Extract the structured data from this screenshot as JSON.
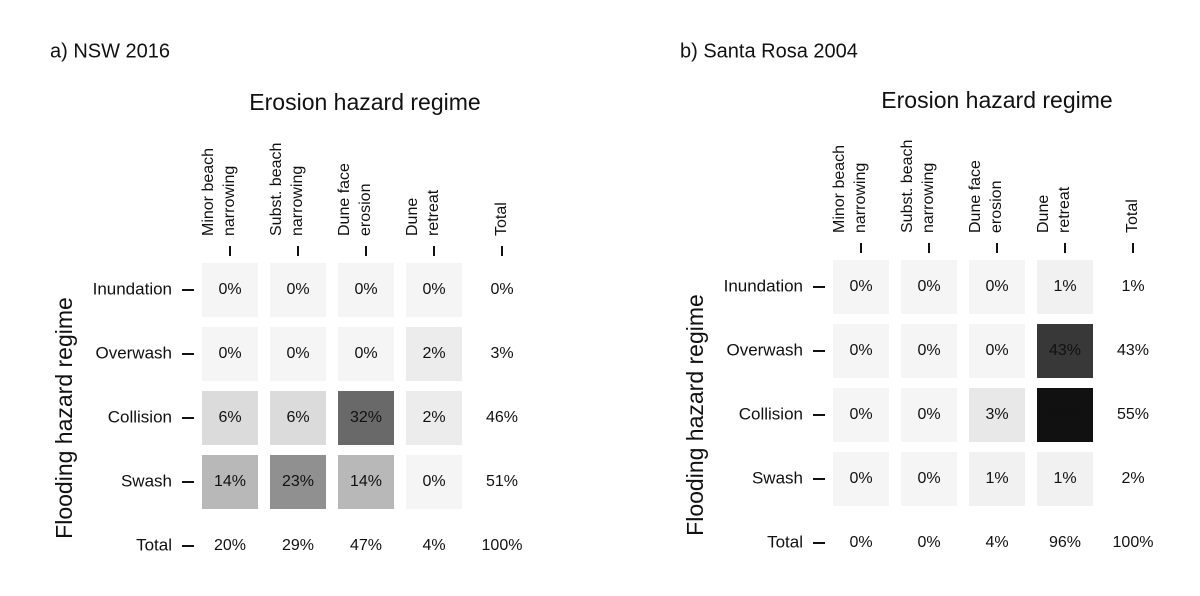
{
  "chart_data": [
    {
      "type": "heatmap",
      "panel_label": "a) NSW 2016",
      "title": "Erosion hazard regime",
      "ylabel": "Flooding hazard regime",
      "columns": [
        [
          "Minor beach",
          "narrowing"
        ],
        [
          "Subst. beach",
          "narrowing"
        ],
        [
          "Dune face",
          "erosion"
        ],
        [
          "Dune",
          "retreat"
        ],
        [
          "Total"
        ]
      ],
      "rows": [
        "Inundation",
        "Overwash",
        "Collision",
        "Swash",
        "Total"
      ],
      "cells": [
        [
          0,
          0,
          0,
          0
        ],
        [
          0,
          0,
          0,
          2
        ],
        [
          6,
          6,
          32,
          2
        ],
        [
          14,
          23,
          14,
          0
        ]
      ],
      "row_totals": [
        0,
        3,
        46,
        51
      ],
      "col_totals": [
        20,
        29,
        47,
        4
      ],
      "grand_total": 100,
      "unit": "%"
    },
    {
      "type": "heatmap",
      "panel_label": "b) Santa Rosa 2004",
      "title": "Erosion hazard regime",
      "ylabel": "Flooding hazard regime",
      "columns": [
        [
          "Minor beach",
          "narrowing"
        ],
        [
          "Subst. beach",
          "narrowing"
        ],
        [
          "Dune face",
          "erosion"
        ],
        [
          "Dune",
          "retreat"
        ],
        [
          "Total"
        ]
      ],
      "rows": [
        "Inundation",
        "Overwash",
        "Collision",
        "Swash",
        "Total"
      ],
      "cells": [
        [
          0,
          0,
          0,
          1
        ],
        [
          0,
          0,
          0,
          43
        ],
        [
          0,
          0,
          3,
          52
        ],
        [
          0,
          0,
          1,
          1
        ]
      ],
      "row_totals": [
        1,
        43,
        55,
        2
      ],
      "col_totals": [
        0,
        0,
        4,
        96
      ],
      "grand_total": 100,
      "unit": "%"
    }
  ]
}
